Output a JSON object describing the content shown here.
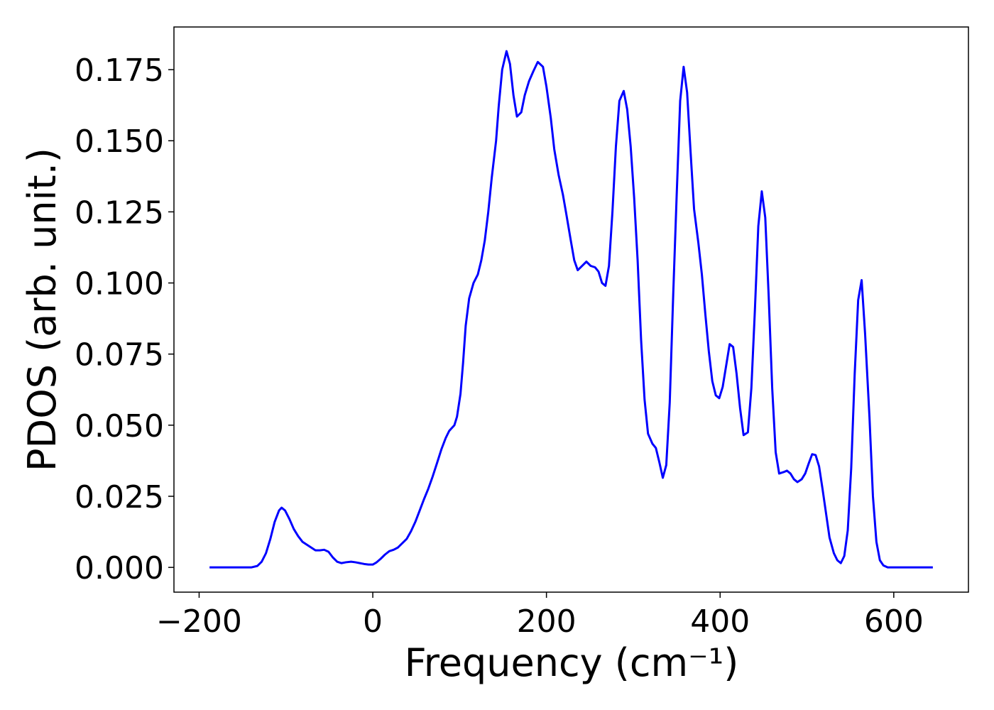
{
  "chart_data": {
    "type": "line",
    "xlabel": "Frequency (cm⁻¹)",
    "ylabel": "PDOS (arb. unit.)",
    "xlim": [
      -229,
      686
    ],
    "ylim": [
      -0.0087,
      0.19
    ],
    "xticks": [
      {
        "value": -200,
        "label": "−200"
      },
      0,
      200,
      400,
      600
    ],
    "yticks": [
      {
        "value": 0,
        "label": "0.000"
      },
      {
        "value": 0.025,
        "label": "0.025"
      },
      {
        "value": 0.05,
        "label": "0.050"
      },
      {
        "value": 0.075,
        "label": "0.075"
      },
      {
        "value": 0.1,
        "label": "0.100"
      },
      {
        "value": 0.125,
        "label": "0.125"
      },
      {
        "value": 0.15,
        "label": "0.150"
      },
      {
        "value": 0.175,
        "label": "0.175"
      }
    ],
    "grid": false,
    "series": [
      {
        "color": "#0000ff",
        "x": [
          -188,
          -140,
          -133,
          -128,
          -123,
          -118,
          -113,
          -108,
          -105,
          -101,
          -96,
          -91,
          -86,
          -81,
          -76,
          -71,
          -66,
          -61,
          -56,
          -51,
          -46,
          -41,
          -36,
          -31,
          -25,
          -20,
          -15,
          -10,
          -5,
          0,
          4,
          9,
          14,
          19,
          24,
          29,
          34,
          39,
          44,
          49,
          54,
          59,
          64,
          69,
          74,
          79,
          84,
          88,
          94,
          97,
          101,
          104,
          107,
          111,
          116,
          121,
          125,
          129,
          133,
          137,
          142,
          145,
          149,
          154,
          158,
          162,
          166,
          171,
          175,
          180,
          185,
          190,
          196,
          200,
          205,
          209,
          214,
          219,
          223,
          228,
          232,
          236,
          241,
          246,
          251,
          256,
          260,
          264,
          268,
          272,
          276,
          280,
          284,
          289,
          293,
          297,
          301,
          305,
          309,
          313,
          317,
          322,
          326,
          330,
          334,
          338,
          342,
          346,
          350,
          354,
          358,
          362,
          366,
          370,
          375,
          379,
          383,
          387,
          391,
          395,
          399,
          403,
          407,
          411,
          415,
          419,
          423,
          427,
          432,
          436,
          440,
          444,
          448,
          452,
          456,
          460,
          464,
          468,
          473,
          477,
          481,
          485,
          489,
          494,
          498,
          502,
          506,
          510,
          514,
          518,
          522,
          526,
          531,
          535,
          539,
          543,
          547,
          551,
          555,
          559,
          563,
          567,
          572,
          576,
          580,
          584,
          588,
          593,
          645
        ],
        "values": [
          0,
          0,
          0.0005,
          0.002,
          0.005,
          0.01,
          0.016,
          0.02,
          0.021,
          0.02,
          0.017,
          0.0135,
          0.011,
          0.009,
          0.008,
          0.007,
          0.006,
          0.006,
          0.0062,
          0.0055,
          0.0035,
          0.002,
          0.0015,
          0.0018,
          0.002,
          0.0018,
          0.0015,
          0.0012,
          0.001,
          0.001,
          0.0017,
          0.003,
          0.0045,
          0.0057,
          0.0062,
          0.007,
          0.0085,
          0.01,
          0.0127,
          0.016,
          0.02,
          0.024,
          0.0277,
          0.032,
          0.0367,
          0.0415,
          0.0455,
          0.048,
          0.05,
          0.053,
          0.061,
          0.072,
          0.085,
          0.0946,
          0.1,
          0.103,
          0.108,
          0.115,
          0.125,
          0.137,
          0.15,
          0.162,
          0.175,
          0.1815,
          0.177,
          0.166,
          0.1585,
          0.16,
          0.166,
          0.171,
          0.1745,
          0.1777,
          0.176,
          0.169,
          0.158,
          0.147,
          0.138,
          0.131,
          0.124,
          0.115,
          0.108,
          0.1045,
          0.106,
          0.1075,
          0.106,
          0.1055,
          0.104,
          0.1,
          0.099,
          0.106,
          0.125,
          0.148,
          0.164,
          0.1675,
          0.161,
          0.148,
          0.13,
          0.108,
          0.08,
          0.059,
          0.047,
          0.0435,
          0.042,
          0.037,
          0.0315,
          0.036,
          0.058,
          0.096,
          0.131,
          0.164,
          0.176,
          0.167,
          0.146,
          0.126,
          0.114,
          0.103,
          0.089,
          0.076,
          0.0655,
          0.0605,
          0.0595,
          0.0635,
          0.071,
          0.0785,
          0.0775,
          0.068,
          0.056,
          0.0465,
          0.0475,
          0.063,
          0.09,
          0.12,
          0.1322,
          0.123,
          0.095,
          0.063,
          0.0405,
          0.033,
          0.0335,
          0.034,
          0.033,
          0.031,
          0.03,
          0.031,
          0.033,
          0.0365,
          0.0398,
          0.0395,
          0.0355,
          0.0275,
          0.019,
          0.0105,
          0.005,
          0.0025,
          0.0015,
          0.004,
          0.013,
          0.035,
          0.068,
          0.094,
          0.101,
          0.082,
          0.053,
          0.025,
          0.009,
          0.0025,
          0.0007,
          0,
          0
        ]
      }
    ]
  }
}
